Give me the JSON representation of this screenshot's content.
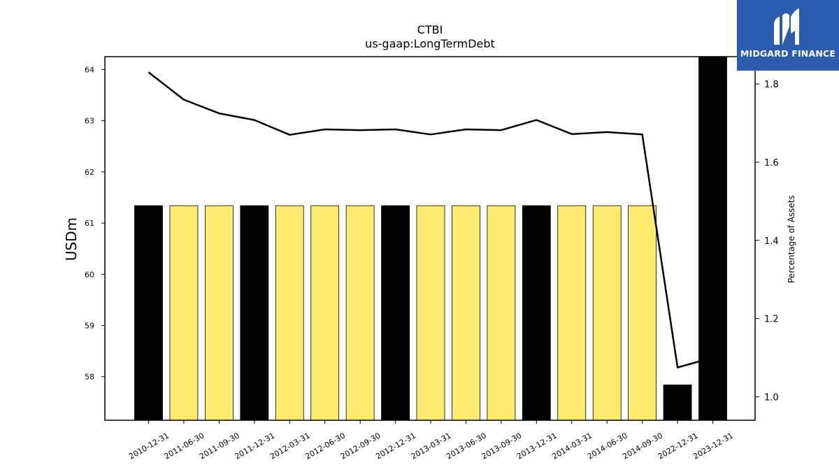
{
  "chart_data": {
    "type": "bar+line",
    "title": "CTBI",
    "subtitle": "us-gaap:LongTermDebt",
    "ylabel": "USDm",
    "y2label": "Percentage of Assets",
    "categories": [
      "2010-12-31",
      "2011-06-30",
      "2011-09-30",
      "2011-12-31",
      "2012-03-31",
      "2012-06-30",
      "2012-09-30",
      "2012-12-31",
      "2013-03-31",
      "2013-06-30",
      "2013-09-30",
      "2013-12-31",
      "2014-03-31",
      "2014-06-30",
      "2014-09-30",
      "2022-12-31",
      "2023-12-31"
    ],
    "bars": {
      "axis": "left",
      "values": [
        61.34,
        61.34,
        61.34,
        61.34,
        61.34,
        61.34,
        61.34,
        61.34,
        61.34,
        61.34,
        61.34,
        61.34,
        61.34,
        61.34,
        61.34,
        57.84,
        64.25
      ],
      "colors": [
        "#000000",
        "#fdeb71",
        "#fdeb71",
        "#000000",
        "#fdeb71",
        "#fdeb71",
        "#fdeb71",
        "#000000",
        "#fdeb71",
        "#fdeb71",
        "#fdeb71",
        "#000000",
        "#fdeb71",
        "#fdeb71",
        "#fdeb71",
        "#000000",
        "#000000"
      ]
    },
    "line": {
      "axis": "right",
      "values": [
        1.83,
        1.76,
        1.725,
        1.708,
        1.67,
        1.684,
        1.682,
        1.684,
        1.671,
        1.684,
        1.682,
        1.708,
        1.672,
        1.677,
        1.671,
        1.075,
        1.1
      ]
    },
    "ylim": [
      57.15,
      64.25
    ],
    "y_ticks": [
      "58",
      "59",
      "60",
      "61",
      "62",
      "63",
      "64"
    ],
    "y2lim": [
      0.94,
      1.87
    ],
    "y2_ticks": [
      "1.0",
      "1.2",
      "1.4",
      "1.6",
      "1.8"
    ],
    "grid": false,
    "colors": {
      "accent_bar": "#fdeb71",
      "dark_bar": "#000000",
      "line": "#000000"
    }
  },
  "logo": {
    "text": "MIDGARD FINANCE",
    "background": "#2b5cae"
  }
}
